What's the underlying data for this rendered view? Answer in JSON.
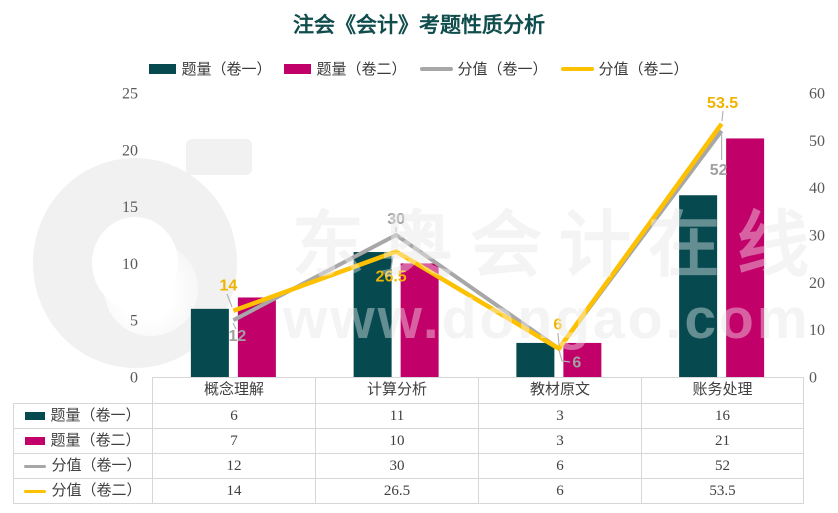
{
  "title": "注会《会计》考题性质分析",
  "watermark": {
    "logo_letter": "d",
    "line1": "东奥会计在线",
    "line2": "www.dongao.com"
  },
  "colors": {
    "title": "#114d4d",
    "bar_vol1": "#064a4f",
    "bar_vol2": "#c1006a",
    "line_score1": "#a7a7a7",
    "line_score2": "#fdc101",
    "label_gray": "#a0a0a0",
    "label_yellow": "#f0b400",
    "axis_text": "#595959",
    "table_border": "#d7d7d7",
    "watermark": "#ededed"
  },
  "legend": {
    "items": [
      {
        "label": "题量（卷一）",
        "swatch": "bar",
        "color": "#064a4f"
      },
      {
        "label": "题量（卷二）",
        "swatch": "bar",
        "color": "#c1006a"
      },
      {
        "label": "分值（卷一）",
        "swatch": "line",
        "color": "#a7a7a7"
      },
      {
        "label": "分值（卷二）",
        "swatch": "line",
        "color": "#fdc101"
      }
    ]
  },
  "chart_data": {
    "type": "combo bar+line (dual axis)",
    "categories": [
      "概念理解",
      "计算分析",
      "教材原文",
      "账务处理"
    ],
    "series": [
      {
        "name": "题量（卷一）",
        "chart_type": "bar",
        "axis": "left",
        "color": "#064a4f",
        "values": [
          6,
          11,
          3,
          16
        ]
      },
      {
        "name": "题量（卷二）",
        "chart_type": "bar",
        "axis": "left",
        "color": "#c1006a",
        "values": [
          7,
          10,
          3,
          21
        ]
      },
      {
        "name": "分值（卷一）",
        "chart_type": "line",
        "axis": "right",
        "color": "#a7a7a7",
        "label_color": "#a0a0a0",
        "values": [
          12,
          30,
          6,
          52
        ]
      },
      {
        "name": "分值（卷二）",
        "chart_type": "line",
        "axis": "right",
        "color": "#fdc101",
        "label_color": "#f0b400",
        "values": [
          14,
          26.5,
          6,
          53.5
        ]
      }
    ],
    "left_axis": {
      "min": 0,
      "max": 25,
      "ticks": [
        25,
        20,
        15,
        10,
        5,
        0
      ]
    },
    "right_axis": {
      "min": 0,
      "max": 60,
      "ticks": [
        60,
        50,
        40,
        30,
        20,
        10,
        0
      ]
    },
    "grid": false,
    "legend_position": "top",
    "point_labels_shown_for": [
      "分值（卷一）",
      "分值（卷二）"
    ]
  },
  "table": {
    "header": [
      "",
      "概念理解",
      "计算分析",
      "教材原文",
      "账务处理"
    ],
    "rows": [
      {
        "label": "题量（卷一）",
        "swatch": "bar",
        "color": "#064a4f",
        "values": [
          "6",
          "11",
          "3",
          "16"
        ]
      },
      {
        "label": "题量（卷二）",
        "swatch": "bar",
        "color": "#c1006a",
        "values": [
          "7",
          "10",
          "3",
          "21"
        ]
      },
      {
        "label": "分值（卷一）",
        "swatch": "line",
        "color": "#a7a7a7",
        "values": [
          "12",
          "30",
          "6",
          "52"
        ]
      },
      {
        "label": "分值（卷二）",
        "swatch": "line",
        "color": "#fdc101",
        "values": [
          "14",
          "26.5",
          "6",
          "53.5"
        ]
      }
    ]
  }
}
